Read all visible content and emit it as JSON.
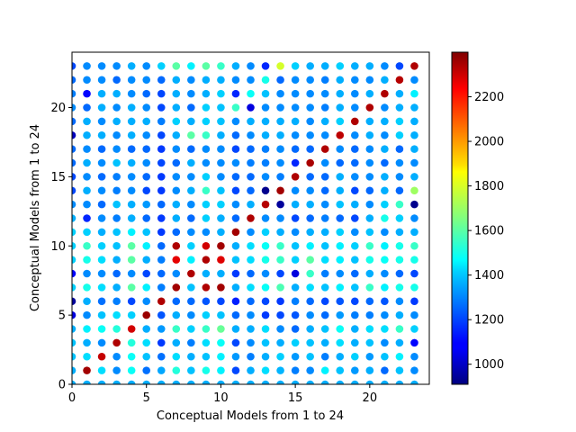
{
  "chart_data": {
    "type": "scatter",
    "title": "",
    "xlabel": "Conceptual Models from 1 to 24",
    "ylabel": "Conceptual Models from 1 to 24",
    "xlim": [
      0,
      24
    ],
    "ylim": [
      0,
      24
    ],
    "xticks": [
      0,
      5,
      10,
      15,
      20
    ],
    "yticks": [
      0,
      5,
      10,
      15,
      20
    ],
    "grid": false,
    "marker": "filled-circle",
    "colormap": "jet",
    "colorbar": {
      "vmin": 910,
      "vmax": 2400,
      "ticks": [
        1000,
        1200,
        1400,
        1600,
        1800,
        2000,
        2200
      ]
    },
    "point_grid": {
      "x": [
        0,
        1,
        2,
        3,
        4,
        5,
        6,
        7,
        8,
        9,
        10,
        11,
        12,
        13,
        14,
        15,
        16,
        17,
        18,
        19,
        20,
        21,
        22,
        23
      ],
      "y": [
        0,
        1,
        2,
        3,
        4,
        5,
        6,
        7,
        8,
        9,
        10,
        11,
        12,
        13,
        14,
        15,
        16,
        17,
        18,
        19,
        20,
        21,
        22,
        23
      ]
    },
    "values_by_row": [
      [
        1350,
        1350,
        1350,
        1350,
        1350,
        1350,
        1350,
        1350,
        1350,
        1350,
        1350,
        1350,
        1350,
        1350,
        1350,
        1350,
        1350,
        1350,
        1350,
        1350,
        1350,
        1350,
        1350,
        1350
      ],
      [
        1350,
        2350,
        1420,
        1300,
        1480,
        1260,
        1340,
        1520,
        1380,
        1500,
        1450,
        1200,
        1350,
        1420,
        1360,
        1280,
        1300,
        1450,
        1380,
        1320,
        1350,
        1250,
        1380,
        1300
      ],
      [
        1380,
        1420,
        2300,
        1300,
        1480,
        1380,
        1260,
        1420,
        1350,
        1380,
        1450,
        1320,
        1280,
        1350,
        1400,
        1320,
        1380,
        1280,
        1350,
        1400,
        1320,
        1380,
        1450,
        1300
      ],
      [
        1380,
        1350,
        1300,
        2330,
        1520,
        1420,
        1180,
        1350,
        1280,
        1420,
        1480,
        1200,
        1300,
        1380,
        1350,
        1400,
        1380,
        1350,
        1420,
        1350,
        1380,
        1300,
        1350,
        1100
      ],
      [
        1350,
        1450,
        1480,
        1520,
        2280,
        1350,
        1320,
        1550,
        1400,
        1550,
        1620,
        1350,
        1350,
        1420,
        1300,
        1250,
        1350,
        1380,
        1480,
        1350,
        1420,
        1420,
        1550,
        1400
      ],
      [
        1050,
        1300,
        1380,
        1420,
        1400,
        2360,
        1220,
        1350,
        1300,
        1400,
        1380,
        1250,
        1300,
        1180,
        1200,
        1220,
        1300,
        1250,
        1320,
        1280,
        1280,
        1300,
        1350,
        1300
      ],
      [
        950,
        1350,
        1260,
        1280,
        1200,
        1300,
        2330,
        1250,
        1250,
        1220,
        1200,
        1140,
        1250,
        1200,
        1180,
        1280,
        1250,
        1200,
        1220,
        1200,
        1250,
        1220,
        1300,
        1180
      ],
      [
        1400,
        1500,
        1420,
        1350,
        1600,
        1450,
        1280,
        2350,
        1380,
        2330,
        2350,
        1350,
        1420,
        1480,
        1580,
        1350,
        1420,
        1380,
        1450,
        1380,
        1550,
        1450,
        1500,
        1500
      ],
      [
        1100,
        1300,
        1300,
        1250,
        1300,
        1200,
        1250,
        1300,
        2330,
        1350,
        1350,
        1180,
        1250,
        1300,
        1200,
        1050,
        1550,
        1280,
        1300,
        1250,
        1350,
        1300,
        1250,
        1200
      ],
      [
        1400,
        1500,
        1420,
        1350,
        1600,
        1350,
        1280,
        2250,
        1450,
        2330,
        2260,
        1380,
        1420,
        1500,
        1550,
        1400,
        1600,
        1420,
        1450,
        1380,
        1500,
        1480,
        1500,
        1500
      ],
      [
        1400,
        1550,
        1400,
        1380,
        1600,
        1450,
        1250,
        2330,
        1400,
        2280,
        2350,
        1350,
        1420,
        1480,
        1550,
        1380,
        1450,
        1380,
        1450,
        1400,
        1550,
        1450,
        1500,
        1550
      ],
      [
        1400,
        1400,
        1350,
        1380,
        1450,
        1380,
        1180,
        1250,
        1300,
        1300,
        1350,
        2350,
        1300,
        1400,
        1350,
        1300,
        1350,
        1350,
        1400,
        1300,
        1380,
        1300,
        1350,
        1350
      ],
      [
        1350,
        1150,
        1300,
        1280,
        1350,
        1250,
        1180,
        1350,
        1250,
        1400,
        1350,
        1250,
        2330,
        1300,
        1300,
        1200,
        1250,
        1280,
        1250,
        1200,
        1350,
        1500,
        1400,
        1300
      ],
      [
        1300,
        1300,
        1250,
        1380,
        1350,
        1320,
        1250,
        1350,
        1300,
        1400,
        1400,
        1300,
        1350,
        2320,
        950,
        1350,
        1350,
        1300,
        1380,
        1350,
        1300,
        1400,
        1550,
        930
      ],
      [
        1200,
        1350,
        1300,
        1280,
        1300,
        1200,
        1180,
        1300,
        1350,
        1550,
        1380,
        1200,
        1250,
        930,
        2350,
        1300,
        1300,
        1250,
        1350,
        1200,
        1250,
        1350,
        1250,
        1700
      ],
      [
        1200,
        1300,
        1250,
        1280,
        1300,
        1250,
        1180,
        1300,
        1300,
        1400,
        1300,
        1250,
        1250,
        1300,
        1280,
        2330,
        1250,
        1250,
        1350,
        1300,
        1300,
        1350,
        1300,
        1350
      ],
      [
        1250,
        1350,
        1300,
        1380,
        1350,
        1300,
        1200,
        1250,
        1350,
        1300,
        1300,
        1300,
        1280,
        1280,
        1300,
        1150,
        2340,
        1300,
        1250,
        1250,
        1300,
        1250,
        1300,
        1300
      ],
      [
        1250,
        1300,
        1250,
        1300,
        1250,
        1250,
        1180,
        1300,
        1250,
        1300,
        1300,
        1200,
        1250,
        1280,
        1300,
        1250,
        1250,
        2330,
        1300,
        1250,
        1300,
        1350,
        1250,
        1350
      ],
      [
        1000,
        1350,
        1350,
        1300,
        1350,
        1300,
        1200,
        1350,
        1600,
        1550,
        1350,
        1250,
        1300,
        1350,
        1350,
        1300,
        1300,
        1300,
        2310,
        1300,
        1350,
        1300,
        1400,
        1350
      ],
      [
        1250,
        1350,
        1300,
        1350,
        1350,
        1350,
        1280,
        1400,
        1350,
        1400,
        1380,
        1300,
        1350,
        1350,
        1350,
        1350,
        1300,
        1350,
        1400,
        2330,
        1350,
        1350,
        1400,
        1350
      ],
      [
        1300,
        1250,
        1350,
        1300,
        1350,
        1300,
        1200,
        1350,
        1250,
        1400,
        1380,
        1550,
        1050,
        1300,
        1300,
        1300,
        1300,
        1280,
        1350,
        1300,
        2330,
        1300,
        1350,
        1350
      ],
      [
        1280,
        1100,
        1350,
        1350,
        1300,
        1250,
        1200,
        1350,
        1300,
        1350,
        1400,
        1150,
        1480,
        1380,
        1300,
        1300,
        1300,
        1300,
        1350,
        1300,
        1350,
        2330,
        1350,
        1450
      ],
      [
        1250,
        1300,
        1300,
        1250,
        1300,
        1300,
        1250,
        1350,
        1300,
        1350,
        1350,
        1300,
        1300,
        1500,
        1250,
        1300,
        1300,
        1280,
        1350,
        1300,
        1300,
        1350,
        2320,
        1300
      ],
      [
        1200,
        1300,
        1300,
        1300,
        1350,
        1300,
        1400,
        1600,
        1450,
        1600,
        1550,
        1350,
        1300,
        1150,
        1780,
        1400,
        1350,
        1350,
        1400,
        1350,
        1350,
        1300,
        1200,
        2330
      ]
    ]
  }
}
